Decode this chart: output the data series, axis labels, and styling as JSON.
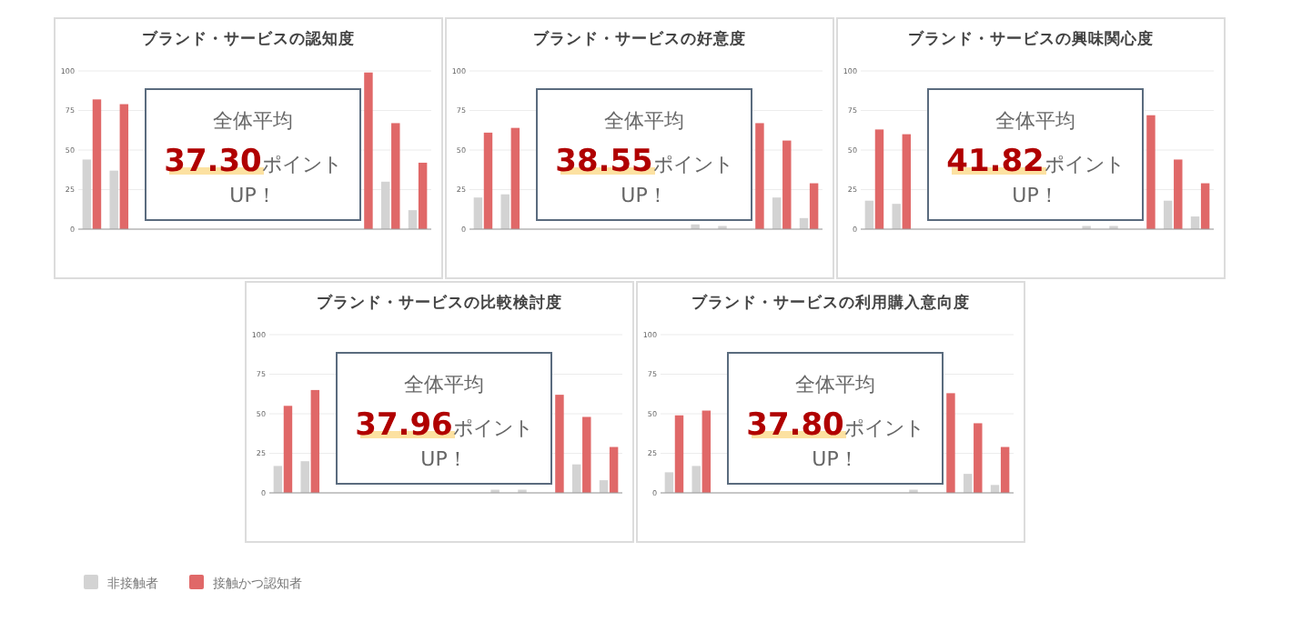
{
  "chart_data": [
    {
      "type": "bar",
      "title": "ブランド・サービスの認知度",
      "categories": [
        null,
        null,
        null,
        null,
        null,
        null,
        null,
        null,
        null,
        null,
        null,
        null,
        null
      ],
      "ylim": [
        0,
        100
      ],
      "yticks": [
        0,
        25,
        50,
        75,
        100
      ],
      "grid": "y",
      "series": [
        {
          "color": "#d3d3d3",
          "values": [
            44,
            37,
            null,
            null,
            null,
            null,
            null,
            null,
            null,
            null,
            null,
            30,
            12
          ]
        },
        {
          "color": "#e06868",
          "values": [
            82,
            79,
            null,
            null,
            null,
            null,
            null,
            null,
            null,
            null,
            99,
            67,
            42
          ]
        }
      ],
      "annotations": [
        "全体平均",
        "37.30",
        "ポイント",
        "UP！"
      ]
    },
    {
      "type": "bar",
      "title": "ブランド・サービスの好意度",
      "categories": [
        null,
        null,
        null,
        null,
        null,
        null,
        null,
        null,
        null,
        null,
        null,
        null,
        null
      ],
      "ylim": [
        0,
        100
      ],
      "yticks": [
        0,
        25,
        50,
        75,
        100
      ],
      "grid": "y",
      "series": [
        {
          "color": "#d3d3d3",
          "values": [
            20,
            22,
            null,
            null,
            null,
            null,
            null,
            null,
            3,
            2,
            null,
            20,
            7
          ]
        },
        {
          "color": "#e06868",
          "values": [
            61,
            64,
            null,
            null,
            null,
            null,
            null,
            null,
            null,
            null,
            67,
            56,
            29
          ]
        }
      ],
      "annotations": [
        "全体平均",
        "38.55",
        "ポイント",
        "UP！"
      ]
    },
    {
      "type": "bar",
      "title": "ブランド・サービスの興味関心度",
      "categories": [
        null,
        null,
        null,
        null,
        null,
        null,
        null,
        null,
        null,
        null,
        null,
        null,
        null
      ],
      "ylim": [
        0,
        100
      ],
      "yticks": [
        0,
        25,
        50,
        75,
        100
      ],
      "grid": "y",
      "series": [
        {
          "color": "#d3d3d3",
          "values": [
            18,
            16,
            null,
            null,
            null,
            null,
            null,
            null,
            2,
            2,
            null,
            18,
            8
          ]
        },
        {
          "color": "#e06868",
          "values": [
            63,
            60,
            null,
            null,
            null,
            null,
            null,
            null,
            null,
            null,
            72,
            44,
            29
          ]
        }
      ],
      "annotations": [
        "全体平均",
        "41.82",
        "ポイント",
        "UP！"
      ]
    },
    {
      "type": "bar",
      "title": "ブランド・サービスの比較検討度",
      "categories": [
        null,
        null,
        null,
        null,
        null,
        null,
        null,
        null,
        null,
        null,
        null,
        null,
        null
      ],
      "ylim": [
        0,
        100
      ],
      "yticks": [
        0,
        25,
        50,
        75,
        100
      ],
      "grid": "y",
      "series": [
        {
          "color": "#d3d3d3",
          "values": [
            17,
            20,
            null,
            null,
            null,
            null,
            null,
            null,
            2,
            2,
            null,
            18,
            8
          ]
        },
        {
          "color": "#e06868",
          "values": [
            55,
            65,
            null,
            null,
            null,
            null,
            null,
            null,
            null,
            null,
            62,
            48,
            29
          ]
        }
      ],
      "annotations": [
        "全体平均",
        "37.96",
        "ポイント",
        "UP！"
      ]
    },
    {
      "type": "bar",
      "title": "ブランド・サービスの利用購入意向度",
      "categories": [
        null,
        null,
        null,
        null,
        null,
        null,
        null,
        null,
        null,
        null,
        null,
        null,
        null
      ],
      "ylim": [
        0,
        100
      ],
      "yticks": [
        0,
        25,
        50,
        75,
        100
      ],
      "grid": "y",
      "legend": "bottom",
      "series": [
        {
          "name": "非接触者",
          "color": "#d3d3d3",
          "values": [
            13,
            17,
            null,
            null,
            null,
            null,
            null,
            null,
            null,
            2,
            null,
            12,
            5
          ]
        },
        {
          "name": "接触かつ認知者",
          "color": "#e06868",
          "values": [
            49,
            52,
            null,
            null,
            null,
            null,
            null,
            null,
            null,
            null,
            63,
            44,
            29
          ]
        }
      ],
      "annotations": [
        "全体平均",
        "37.80",
        "ポイント",
        "UP！"
      ]
    }
  ]
}
